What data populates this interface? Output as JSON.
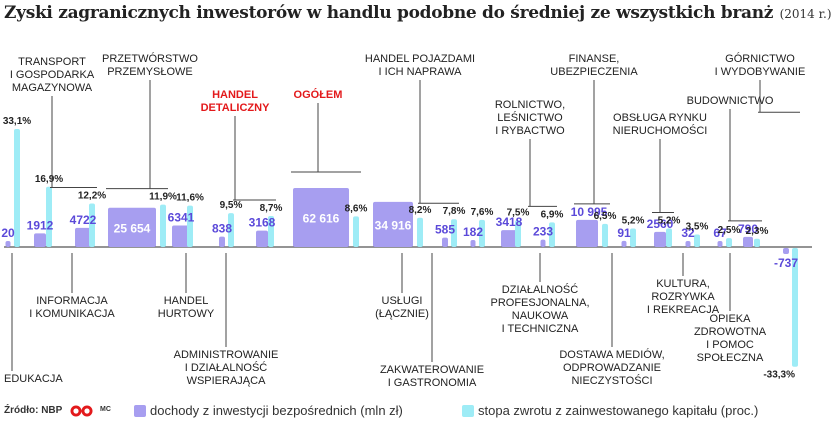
{
  "title": "Zyski zagranicznych inwestorów w handlu podobne do średniej ze wszystkich branż",
  "title_year": "(2014 r.)",
  "source": "Źródło: NBP",
  "logo_text": "MC",
  "legend": {
    "income": "dochody z inwestycji bezpośrednich (mln zł)",
    "return": "stopa zwrotu z zainwestowanego kapitału (proc.)"
  },
  "colors": {
    "income_bar": "#a79ef0",
    "income_text": "#5b49d9",
    "return_bar": "#9eecf6",
    "highlight": "#e3191b",
    "axis": "#555555"
  },
  "chart_data": {
    "type": "bar",
    "series": [
      {
        "name": "dochody z inwestycji bezpośrednich (mln zł)",
        "unit": "mln zł"
      },
      {
        "name": "stopa zwrotu z zainwestowanego kapitału (proc.)",
        "unit": "proc."
      }
    ],
    "categories": [
      {
        "name": "EDUKACJA",
        "income": 20,
        "income_label": "20",
        "rate": 33.1,
        "rate_label": "33,1%"
      },
      {
        "name": "INFORMACJA I KOMUNIKACJA",
        "income": 1912,
        "income_label": "1912",
        "rate": 16.9,
        "rate_label": "16,9%"
      },
      {
        "name": "TRANSPORT I GOSPODARKA MAGAZYNOWA",
        "income": 4722,
        "income_label": "4722",
        "rate": 12.2,
        "rate_label": "12,2%"
      },
      {
        "name": "PRZETWÓRSTWO PRZEMYSŁOWE",
        "income": 25654,
        "income_label": "25 654",
        "rate": 11.9,
        "rate_label": "11,9%"
      },
      {
        "name": "HANDEL HURTOWY",
        "income": 6341,
        "income_label": "6341",
        "rate": 11.6,
        "rate_label": "11,6%"
      },
      {
        "name": "ADMINISTROWANIE I DZIAŁALNOŚĆ WSPIERAJĄCA",
        "income": 838,
        "income_label": "838",
        "rate": 9.5,
        "rate_label": "9,5%"
      },
      {
        "name": "HANDEL DETALICZNY",
        "income": 3168,
        "income_label": "3168",
        "rate": 8.7,
        "rate_label": "8,7%",
        "highlight": true
      },
      {
        "name": "OGÓŁEM",
        "income": 62616,
        "income_label": "62 616",
        "rate": 8.6,
        "rate_label": "8,6%",
        "highlight": true
      },
      {
        "name": "USŁUGI (ŁĄCZNIE)",
        "income": 34916,
        "income_label": "34 916",
        "rate": 8.2,
        "rate_label": "8,2%"
      },
      {
        "name": "HANDEL POJAZDAMI I ICH NAPRAWA",
        "income": 585,
        "income_label": "585",
        "rate": 7.8,
        "rate_label": "7,8%"
      },
      {
        "name": "ZAKWATEROWANIE I GASTRONOMIA",
        "income": 182,
        "income_label": "182",
        "rate": 7.6,
        "rate_label": "7,6%"
      },
      {
        "name": "DZIAŁALNOŚĆ PROFESJONALNA, NAUKOWA I TECHNICZNA",
        "income": 3418,
        "income_label": "3418",
        "rate": 7.5,
        "rate_label": "7,5%"
      },
      {
        "name": "ROLNICTWO, LEŚNICTWO I RYBACTWO",
        "income": 233,
        "income_label": "233",
        "rate": 6.9,
        "rate_label": "6,9%"
      },
      {
        "name": "FINANSE, UBEZPIECZENIA",
        "income": 10995,
        "income_label": "10 995",
        "rate": 6.5,
        "rate_label": "6,5%"
      },
      {
        "name": "DOSTAWA MEDIÓW, ODPROWADZANIE NIECZYSTOŚCI",
        "income": 91,
        "income_label": "91",
        "rate": 5.2,
        "rate_label": "5,2%"
      },
      {
        "name": "OBSŁUGA RYNKU NIERUCHOMOŚCI",
        "income": 2560,
        "income_label": "2560",
        "rate": 5.2,
        "rate_label": "5,2%"
      },
      {
        "name": "KULTURA, ROZRYWKA I REKREACJA",
        "income": 32,
        "income_label": "32",
        "rate": 3.5,
        "rate_label": "3,5%"
      },
      {
        "name": "OPIEKA ZDROWOTNA I POMOC SPOŁECZNA",
        "income": 67,
        "income_label": "67",
        "rate": 2.5,
        "rate_label": "2,5%"
      },
      {
        "name": "BUDOWNICTWO",
        "income": 790,
        "income_label": "790",
        "rate": 2.3,
        "rate_label": "2,3%"
      },
      {
        "name": "GÓRNICTWO I WYDOBYWANIE",
        "income": -737,
        "income_label": "-737",
        "rate": -33.3,
        "rate_label": "-33,3%"
      }
    ]
  }
}
